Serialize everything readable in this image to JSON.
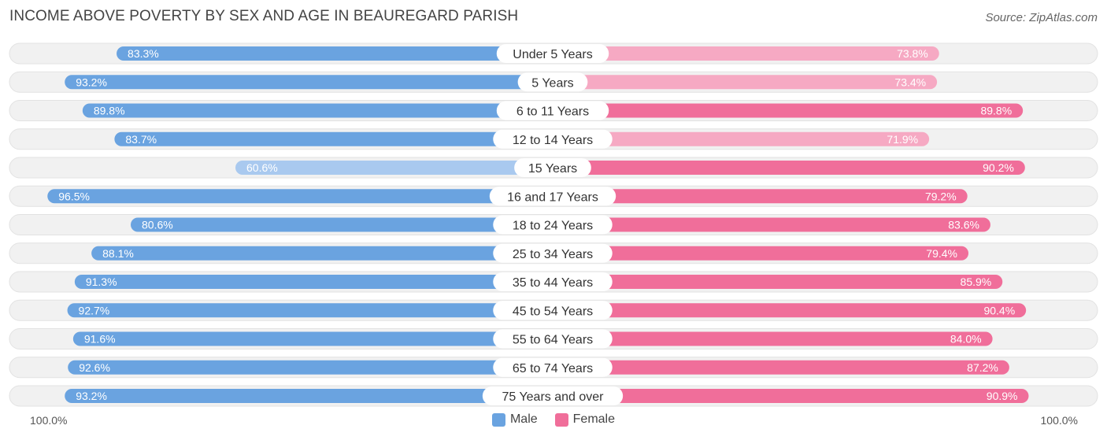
{
  "title": "INCOME ABOVE POVERTY BY SEX AND AGE IN BEAUREGARD PARISH",
  "source": "Source: ZipAtlas.com",
  "colors": {
    "male_strong": "#6aa3e0",
    "male_light": "#a9c9ef",
    "female_strong": "#f06e9a",
    "female_light": "#f6a9c3",
    "track": "#f1f1f1"
  },
  "legend": {
    "male_label": "Male",
    "female_label": "Female"
  },
  "axis": {
    "left_label": "100.0%",
    "right_label": "100.0%"
  },
  "chart_data": {
    "type": "bar",
    "orientation": "horizontal-diverging",
    "xlim": [
      0,
      100
    ],
    "categories": [
      "Under 5 Years",
      "5 Years",
      "6 to 11 Years",
      "12 to 14 Years",
      "15 Years",
      "16 and 17 Years",
      "18 to 24 Years",
      "25 to 34 Years",
      "35 to 44 Years",
      "45 to 54 Years",
      "55 to 64 Years",
      "65 to 74 Years",
      "75 Years and over"
    ],
    "series": [
      {
        "name": "Male",
        "values": [
          83.3,
          93.2,
          89.8,
          83.7,
          60.6,
          96.5,
          80.6,
          88.1,
          91.3,
          92.7,
          91.6,
          92.6,
          93.2
        ],
        "labels": [
          "83.3%",
          "93.2%",
          "89.8%",
          "83.7%",
          "60.6%",
          "96.5%",
          "80.6%",
          "88.1%",
          "91.3%",
          "92.7%",
          "91.6%",
          "92.6%",
          "93.2%"
        ]
      },
      {
        "name": "Female",
        "values": [
          73.8,
          73.4,
          89.8,
          71.9,
          90.2,
          79.2,
          83.6,
          79.4,
          85.9,
          90.4,
          84.0,
          87.2,
          90.9
        ],
        "labels": [
          "73.8%",
          "73.4%",
          "89.8%",
          "71.9%",
          "90.2%",
          "79.2%",
          "83.6%",
          "79.4%",
          "85.9%",
          "90.4%",
          "84.0%",
          "87.2%",
          "90.9%"
        ]
      }
    ]
  }
}
